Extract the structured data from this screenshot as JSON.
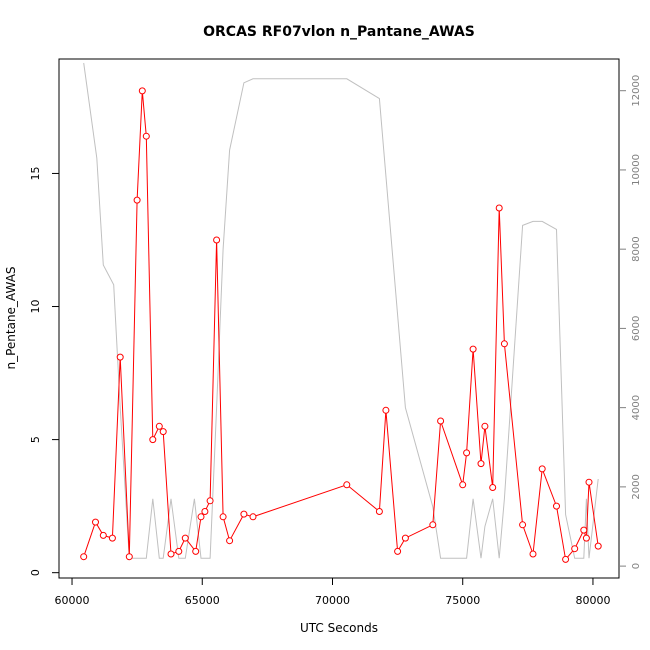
{
  "chart_data": {
    "type": "line",
    "title": "ORCAS RF07vlon n_Pantane_AWAS",
    "xlabel": "UTC Seconds",
    "ylabel": "n_Pentane_AWAS",
    "xlim": [
      59500,
      81000
    ],
    "ylim": [
      -0.2,
      19.3
    ],
    "ylim_right": [
      -300,
      12800
    ],
    "x_ticks": [
      60000,
      65000,
      70000,
      75000,
      80000
    ],
    "y_ticks": [
      0,
      5,
      10,
      15
    ],
    "y_ticks_right": [
      0,
      2000,
      4000,
      6000,
      8000,
      10000,
      12000
    ],
    "grid": false,
    "series": [
      {
        "color": "#ff0000",
        "markers": "open-circle",
        "axis": "left",
        "x": [
          60450,
          60900,
          61200,
          61550,
          61850,
          62200,
          62500,
          62700,
          62850,
          63100,
          63350,
          63500,
          63800,
          64100,
          64350,
          64750,
          64950,
          65100,
          65300,
          65550,
          65800,
          66050,
          66600,
          66950,
          70550,
          71800,
          72050,
          72500,
          72800,
          73850,
          74150,
          75000,
          75150,
          75400,
          75700,
          75850,
          76150,
          76400,
          76600,
          77300,
          77700,
          78050,
          78600,
          78950,
          79300,
          79650,
          79750,
          79850,
          80200
        ],
        "y": [
          0.6,
          1.9,
          1.4,
          1.3,
          8.1,
          0.6,
          14.0,
          18.1,
          16.4,
          5.0,
          5.5,
          5.3,
          0.7,
          0.8,
          1.3,
          0.8,
          2.1,
          2.3,
          2.7,
          12.5,
          2.1,
          1.2,
          2.2,
          2.1,
          3.3,
          2.3,
          6.1,
          0.8,
          1.3,
          1.8,
          5.7,
          3.3,
          4.5,
          8.4,
          4.1,
          5.5,
          3.2,
          13.7,
          8.6,
          1.8,
          0.7,
          3.9,
          2.5,
          0.5,
          0.9,
          1.6,
          1.3,
          3.4,
          1.0
        ]
      },
      {
        "color": "#c0c0c0",
        "markers": "none",
        "axis": "right",
        "x": [
          60450,
          60950,
          61200,
          61600,
          61850,
          62200,
          62500,
          62700,
          62850,
          63100,
          63350,
          63500,
          63800,
          64100,
          64350,
          64700,
          64950,
          65300,
          65550,
          65800,
          66050,
          66600,
          66950,
          70550,
          71800,
          72800,
          73850,
          74150,
          75150,
          75400,
          75700,
          75850,
          76150,
          76400,
          76600,
          77300,
          77700,
          78050,
          78600,
          78950,
          79300,
          79650,
          79750,
          79850,
          80200
        ],
        "y": [
          12700,
          10300,
          7600,
          7100,
          4000,
          200,
          200,
          200,
          200,
          1700,
          200,
          200,
          1700,
          200,
          200,
          1700,
          200,
          200,
          4000,
          8000,
          10500,
          12200,
          12300,
          12300,
          11800,
          4000,
          1500,
          200,
          200,
          1700,
          200,
          1000,
          1700,
          200,
          1700,
          8600,
          8700,
          8700,
          8500,
          1300,
          200,
          200,
          1700,
          200,
          2200
        ]
      }
    ]
  }
}
